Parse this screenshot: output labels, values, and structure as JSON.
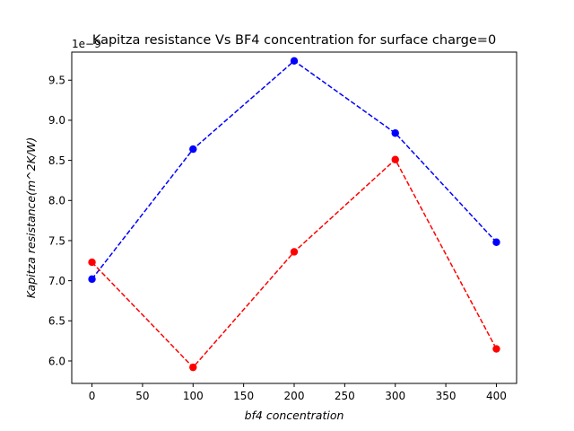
{
  "chart_data": {
    "type": "line",
    "title": "Kapitza resistance Vs BF4 concentration for surface charge=0",
    "xlabel": "bf4 concentration",
    "ylabel": "Kapitza resistance(m^2K/W)",
    "y_offset_label": "1e−9",
    "x": [
      0,
      100,
      200,
      300,
      400
    ],
    "xlim": [
      -20,
      420
    ],
    "ylim": [
      5.72,
      9.85
    ],
    "xticks": [
      0,
      50,
      100,
      150,
      200,
      250,
      300,
      350,
      400
    ],
    "yticks": [
      6.0,
      6.5,
      7.0,
      7.5,
      8.0,
      8.5,
      9.0,
      9.5
    ],
    "ytick_labels": [
      "6.0",
      "6.5",
      "7.0",
      "7.5",
      "8.0",
      "8.5",
      "9.0",
      "9.5"
    ],
    "grid": false,
    "series": [
      {
        "color": "#0000ff",
        "linestyle": "dashed",
        "marker": "circle",
        "values": [
          7.02,
          8.64,
          9.74,
          8.84,
          7.48
        ]
      },
      {
        "color": "#ff0000",
        "linestyle": "dashed",
        "marker": "circle",
        "values": [
          7.23,
          5.92,
          7.36,
          8.51,
          6.15
        ]
      }
    ]
  }
}
